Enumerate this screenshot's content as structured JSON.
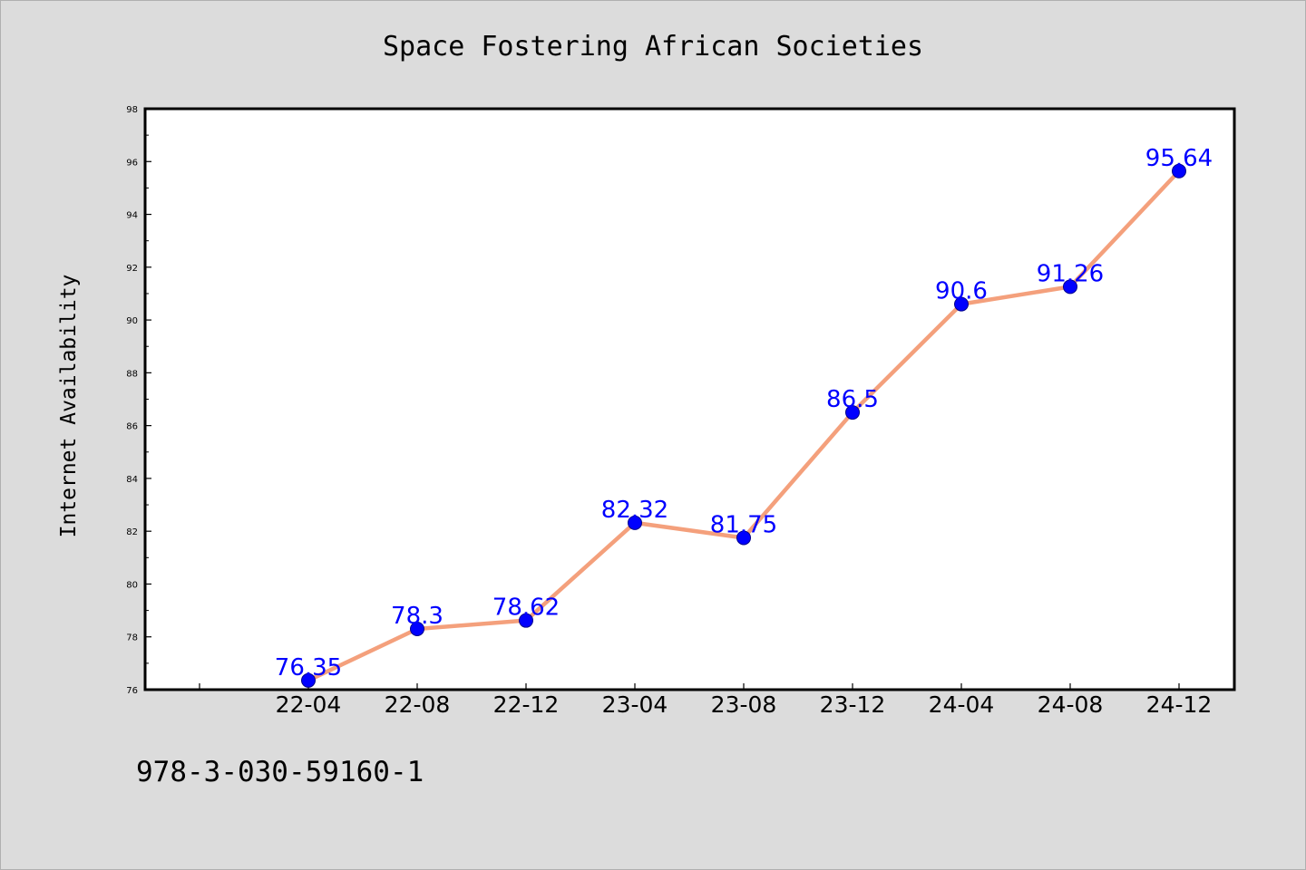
{
  "chart_data": {
    "type": "line",
    "title": "Space Fostering African Societies",
    "xlabel": "",
    "ylabel": "Internet Availability",
    "categories": [
      "22-04",
      "22-08",
      "22-12",
      "23-04",
      "23-08",
      "23-12",
      "24-04",
      "24-08",
      "24-12"
    ],
    "series": [
      {
        "values": [
          76.35,
          78.3,
          78.62,
          82.32,
          81.75,
          86.5,
          90.6,
          91.26,
          95.64
        ],
        "data_labels": [
          "76.35",
          "78.3",
          "78.62",
          "82.32",
          "81.75",
          "86.5",
          "90.6",
          "91.26",
          "95.64"
        ],
        "line_color": "#f4a07c",
        "marker_color": "#0000ff"
      }
    ],
    "ylim": [
      76,
      98
    ],
    "yticks": [
      76,
      78,
      80,
      82,
      84,
      86,
      88,
      90,
      92,
      94,
      96,
      98
    ],
    "grid": false,
    "legend": "none",
    "background_color": "#dcdcdc",
    "plot_background_color": "#ffffff"
  },
  "footnote": "978-3-030-59160-1"
}
